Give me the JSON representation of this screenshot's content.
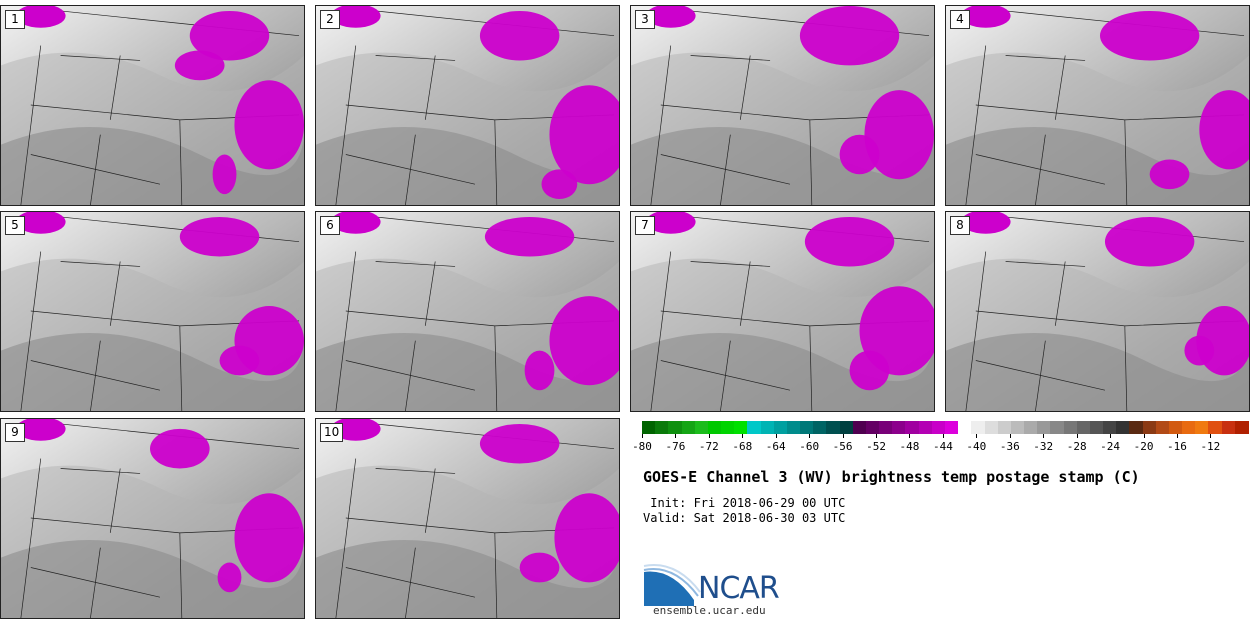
{
  "panels": [
    {
      "label": "1"
    },
    {
      "label": "2"
    },
    {
      "label": "3"
    },
    {
      "label": "4"
    },
    {
      "label": "5"
    },
    {
      "label": "6"
    },
    {
      "label": "7"
    },
    {
      "label": "8"
    },
    {
      "label": "9"
    },
    {
      "label": "10"
    }
  ],
  "colorbar": {
    "tick_labels": [
      "-80",
      "-76",
      "-72",
      "-68",
      "-64",
      "-60",
      "-56",
      "-52",
      "-48",
      "-44",
      "-40",
      "-36",
      "-32",
      "-28",
      "-24",
      "-20",
      "-16",
      "-12"
    ],
    "segment_colors": [
      "#006400",
      "#0a7a0a",
      "#0f900f",
      "#15a515",
      "#1cbc1c",
      "#00c800",
      "#00d400",
      "#00e000",
      "#00c8c8",
      "#00b4b4",
      "#00a0a0",
      "#008c8c",
      "#007878",
      "#006464",
      "#005050",
      "#004040",
      "#500050",
      "#640064",
      "#780078",
      "#8c008c",
      "#a000a0",
      "#b400b4",
      "#c800c8",
      "#dc00dc",
      "#ffffff",
      "#eeeeee",
      "#dddddd",
      "#cccccc",
      "#bbbbbb",
      "#aaaaaa",
      "#999999",
      "#888888",
      "#777777",
      "#666666",
      "#555555",
      "#444444",
      "#333333",
      "#5a2a12",
      "#8b3a14",
      "#b24a16",
      "#d25a10",
      "#e86a10",
      "#f07a10",
      "#e05010",
      "#c83010",
      "#b02000"
    ]
  },
  "title": "GOES-E Channel 3 (WV) brightness temp postage stamp (C)",
  "init_line": " Init: Fri 2018-06-29 00 UTC",
  "valid_line": "Valid: Sat 2018-06-30 03 UTC",
  "logo": {
    "text": "NCAR",
    "brand_color": "#1f4e8c"
  },
  "url": "ensemble.ucar.edu"
}
